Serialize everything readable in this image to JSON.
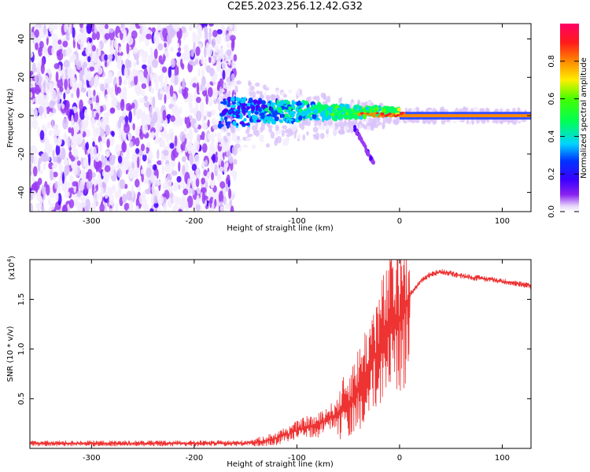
{
  "title": "C2E5.2023.256.12.42.G32",
  "chart_data": [
    {
      "type": "heatmap",
      "xlabel": "Height of straight line (km)",
      "ylabel": "Frequency (Hz)",
      "xlim": [
        -360,
        128
      ],
      "ylim": [
        -50,
        48
      ],
      "xticks": [
        -300,
        -200,
        -100,
        0,
        100
      ],
      "yticks": [
        -40,
        -20,
        0,
        20,
        40
      ],
      "colorbar": {
        "label": "Normalized spectral amplitude",
        "range": [
          0,
          1
        ],
        "ticks": [
          "0.0",
          "0.2",
          "0.4",
          "0.6",
          "0.8"
        ],
        "tick_values": [
          0,
          0.2,
          0.4,
          0.6,
          0.8
        ]
      },
      "grid": false
    },
    {
      "type": "line",
      "xlabel": "Height of straight line (km)",
      "ylabel": "SNR (10 * v/v)",
      "multiplier_label": "(x10",
      "multiplier_exp": "4",
      "xlim": [
        -360,
        128
      ],
      "ylim": [
        0,
        1.9
      ],
      "xticks": [
        -300,
        -200,
        -100,
        0,
        100
      ],
      "yticks": [
        0.5,
        1.0,
        1.5
      ],
      "ytick_labels": [
        "0.5",
        "1.0",
        "1.5"
      ],
      "line_color": "#ee3333",
      "series": [
        {
          "x": [
            -360,
            -340,
            -320,
            -300,
            -280,
            -260,
            -240,
            -220,
            -200,
            -180,
            -160,
            -140,
            -130,
            -120,
            -110,
            -100,
            -90,
            -80,
            -70,
            -60,
            -50,
            -40,
            -35,
            -30,
            -25,
            -20,
            -15,
            -10,
            -8,
            -5,
            0,
            5,
            10,
            15,
            20,
            25,
            30,
            40,
            50,
            60,
            70,
            80,
            90,
            100,
            110,
            120,
            128
          ],
          "values": [
            0.05,
            0.05,
            0.05,
            0.05,
            0.05,
            0.05,
            0.05,
            0.05,
            0.05,
            0.05,
            0.05,
            0.06,
            0.08,
            0.1,
            0.14,
            0.18,
            0.22,
            0.22,
            0.3,
            0.35,
            0.45,
            0.6,
            0.7,
            0.8,
            0.9,
            1.0,
            1.1,
            1.2,
            1.3,
            1.25,
            1.3,
            1.45,
            1.55,
            1.6,
            1.68,
            1.72,
            1.75,
            1.78,
            1.76,
            1.74,
            1.72,
            1.71,
            1.7,
            1.68,
            1.67,
            1.65,
            1.63
          ]
        }
      ]
    }
  ]
}
